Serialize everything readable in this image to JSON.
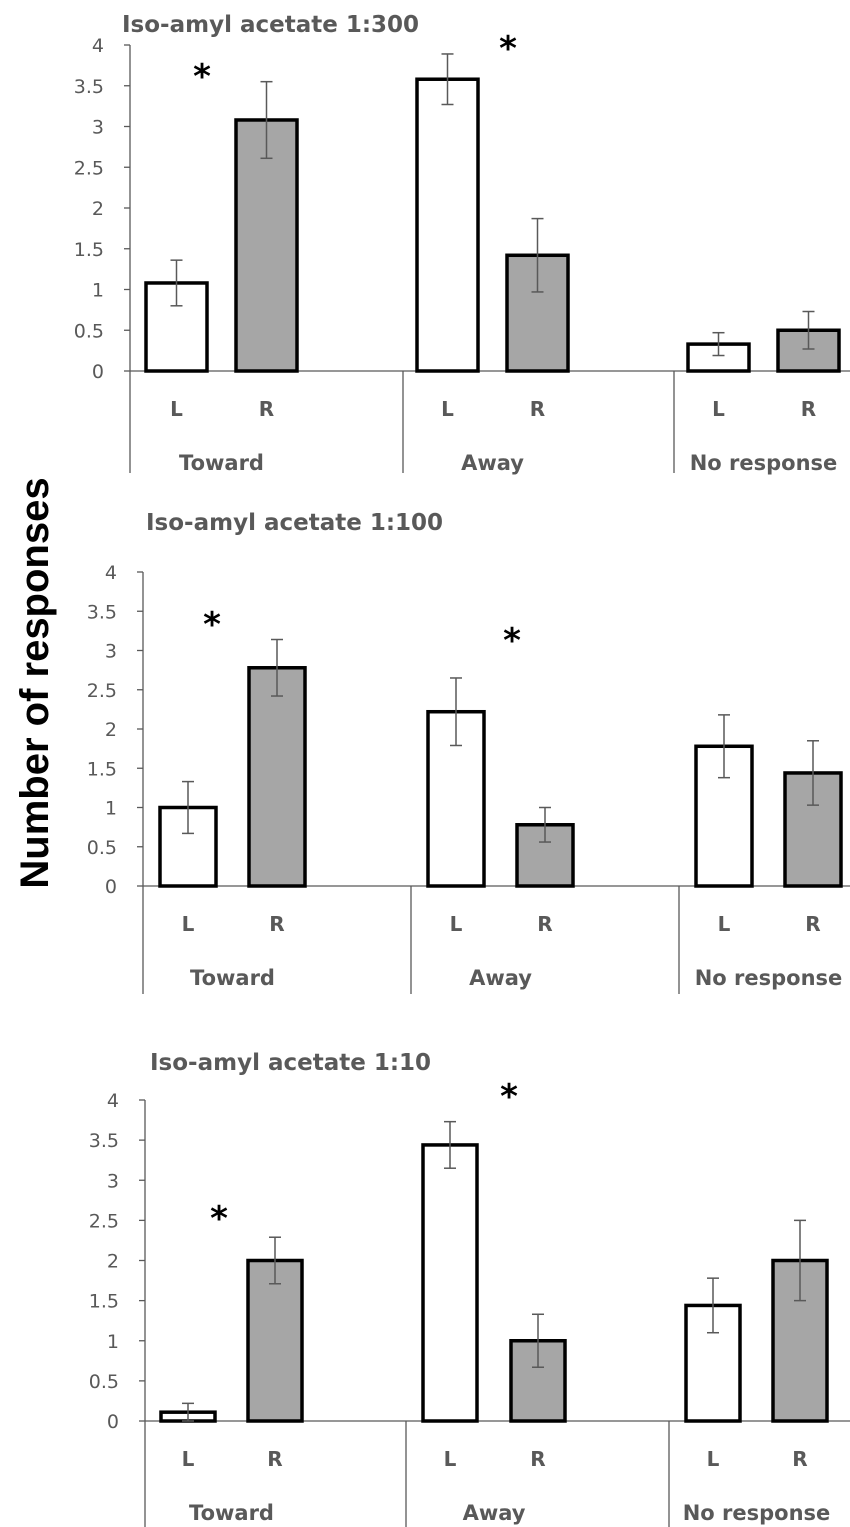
{
  "ylabel": "Number of responses",
  "colors": {
    "left_bar": "#ffffff",
    "right_bar": "#a6a6a6",
    "outline": "#000000",
    "axis": "#595959",
    "error_bar": "#595959"
  },
  "chart_data": [
    {
      "type": "bar",
      "title": "Iso-amyl acetate 1:300",
      "groups": [
        "Toward",
        "Away",
        "No response"
      ],
      "categories": [
        "L",
        "R",
        "L",
        "R",
        "L",
        "R"
      ],
      "values": [
        1.08,
        3.08,
        3.58,
        1.42,
        0.33,
        0.5
      ],
      "errors": [
        0.28,
        0.47,
        0.31,
        0.45,
        0.14,
        0.23
      ],
      "yticks": [
        "0",
        "0.5",
        "1",
        "1.5",
        "2",
        "2.5",
        "3",
        "3.5",
        "4"
      ],
      "ylim": [
        0,
        4
      ],
      "annotations": [
        "*",
        "*"
      ],
      "grid": false,
      "legend": "none"
    },
    {
      "type": "bar",
      "title": "Iso-amyl acetate 1:100",
      "groups": [
        "Toward",
        "Away",
        "No response"
      ],
      "categories": [
        "L",
        "R",
        "L",
        "R",
        "L",
        "R"
      ],
      "values": [
        1.0,
        2.78,
        2.22,
        0.78,
        1.78,
        1.44
      ],
      "errors": [
        0.33,
        0.36,
        0.43,
        0.22,
        0.4,
        0.41
      ],
      "yticks": [
        "0",
        "0.5",
        "1",
        "1.5",
        "2",
        "2.5",
        "3",
        "3.5",
        "4"
      ],
      "ylim": [
        0,
        4
      ],
      "annotations": [
        "*",
        "*"
      ],
      "grid": false,
      "legend": "none"
    },
    {
      "type": "bar",
      "title": "Iso-amyl acetate 1:10",
      "groups": [
        "Toward",
        "Away",
        "No response"
      ],
      "categories": [
        "L",
        "R",
        "L",
        "R",
        "L",
        "R"
      ],
      "values": [
        0.11,
        2.0,
        3.44,
        1.0,
        1.44,
        2.0
      ],
      "errors": [
        0.11,
        0.29,
        0.29,
        0.33,
        0.34,
        0.5
      ],
      "yticks": [
        "0",
        "0.5",
        "1",
        "1.5",
        "2",
        "2.5",
        "3",
        "3.5",
        "4"
      ],
      "ylim": [
        0,
        4
      ],
      "annotations": [
        "*",
        "*"
      ],
      "grid": false,
      "legend": "none"
    }
  ]
}
